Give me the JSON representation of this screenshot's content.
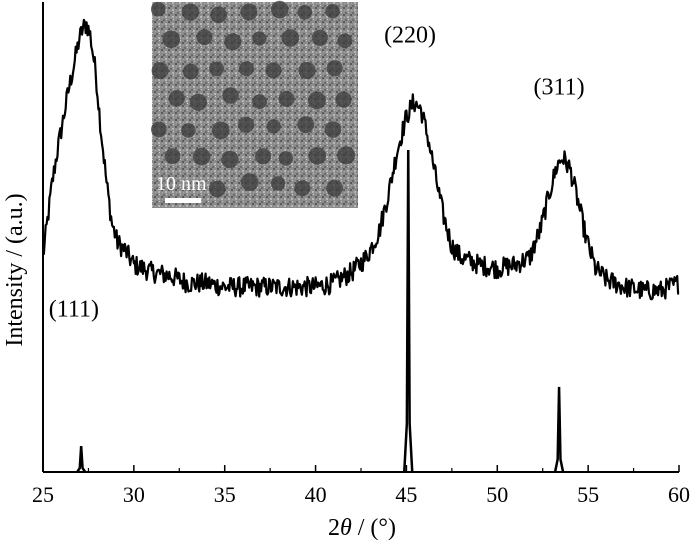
{
  "chart_data": {
    "type": "line",
    "title": "",
    "xlabel_prefix": "2",
    "xlabel_symbol": "θ",
    "xlabel_suffix": " / (°)",
    "ylabel": "Intensity / (a.u.)",
    "xlim": [
      25,
      60
    ],
    "x_ticks": [
      "25",
      "30",
      "35",
      "40",
      "45",
      "50",
      "55",
      "60"
    ],
    "y_ticks_shown": false,
    "grid": false,
    "legend": "none",
    "series": [
      {
        "kind": "measured pattern",
        "color": "#000000",
        "points": [
          [
            25.0,
            0.58
          ],
          [
            25.2,
            0.66
          ],
          [
            25.5,
            0.78
          ],
          [
            25.8,
            0.87
          ],
          [
            26.1,
            0.95
          ],
          [
            26.4,
            1.03
          ],
          [
            26.7,
            1.1
          ],
          [
            27.0,
            1.17
          ],
          [
            27.2,
            1.2
          ],
          [
            27.4,
            1.21
          ],
          [
            27.6,
            1.18
          ],
          [
            27.9,
            1.08
          ],
          [
            28.2,
            0.92
          ],
          [
            28.5,
            0.78
          ],
          [
            28.8,
            0.67
          ],
          [
            29.1,
            0.62
          ],
          [
            29.5,
            0.6
          ],
          [
            30.0,
            0.56
          ],
          [
            31.0,
            0.54
          ],
          [
            32.0,
            0.53
          ],
          [
            33.0,
            0.51
          ],
          [
            34.0,
            0.51
          ],
          [
            35.0,
            0.5
          ],
          [
            36.0,
            0.5
          ],
          [
            37.0,
            0.5
          ],
          [
            38.0,
            0.5
          ],
          [
            39.0,
            0.5
          ],
          [
            40.0,
            0.5
          ],
          [
            41.0,
            0.51
          ],
          [
            42.0,
            0.54
          ],
          [
            42.8,
            0.58
          ],
          [
            43.5,
            0.65
          ],
          [
            44.0,
            0.75
          ],
          [
            44.5,
            0.87
          ],
          [
            45.0,
            0.96
          ],
          [
            45.4,
            1.0
          ],
          [
            45.8,
            0.98
          ],
          [
            46.2,
            0.9
          ],
          [
            46.6,
            0.8
          ],
          [
            47.0,
            0.7
          ],
          [
            47.5,
            0.61
          ],
          [
            48.0,
            0.58
          ],
          [
            49.0,
            0.56
          ],
          [
            50.0,
            0.55
          ],
          [
            51.0,
            0.56
          ],
          [
            51.8,
            0.58
          ],
          [
            52.4,
            0.66
          ],
          [
            52.9,
            0.76
          ],
          [
            53.3,
            0.83
          ],
          [
            53.6,
            0.85
          ],
          [
            54.0,
            0.82
          ],
          [
            54.4,
            0.74
          ],
          [
            54.9,
            0.63
          ],
          [
            55.4,
            0.55
          ],
          [
            56.0,
            0.52
          ],
          [
            57.0,
            0.5
          ],
          [
            58.0,
            0.49
          ],
          [
            59.0,
            0.49
          ],
          [
            60.0,
            0.51
          ]
        ]
      },
      {
        "kind": "reference lines",
        "color": "#000000",
        "peaks": [
          {
            "x": 27.1,
            "height": 0.07
          },
          {
            "x": 45.1,
            "height": 0.87
          },
          {
            "x": 53.4,
            "height": 0.23
          }
        ]
      }
    ],
    "annotations": [
      {
        "text": "(111)",
        "x": 26.7,
        "y": 0.42
      },
      {
        "text": "(220)",
        "x": 45.2,
        "y": 1.16
      },
      {
        "text": "(311)",
        "x": 53.4,
        "y": 1.02
      }
    ],
    "inset": {
      "kind": "TEM micrograph",
      "scale_bar_label": "10 nm"
    }
  }
}
